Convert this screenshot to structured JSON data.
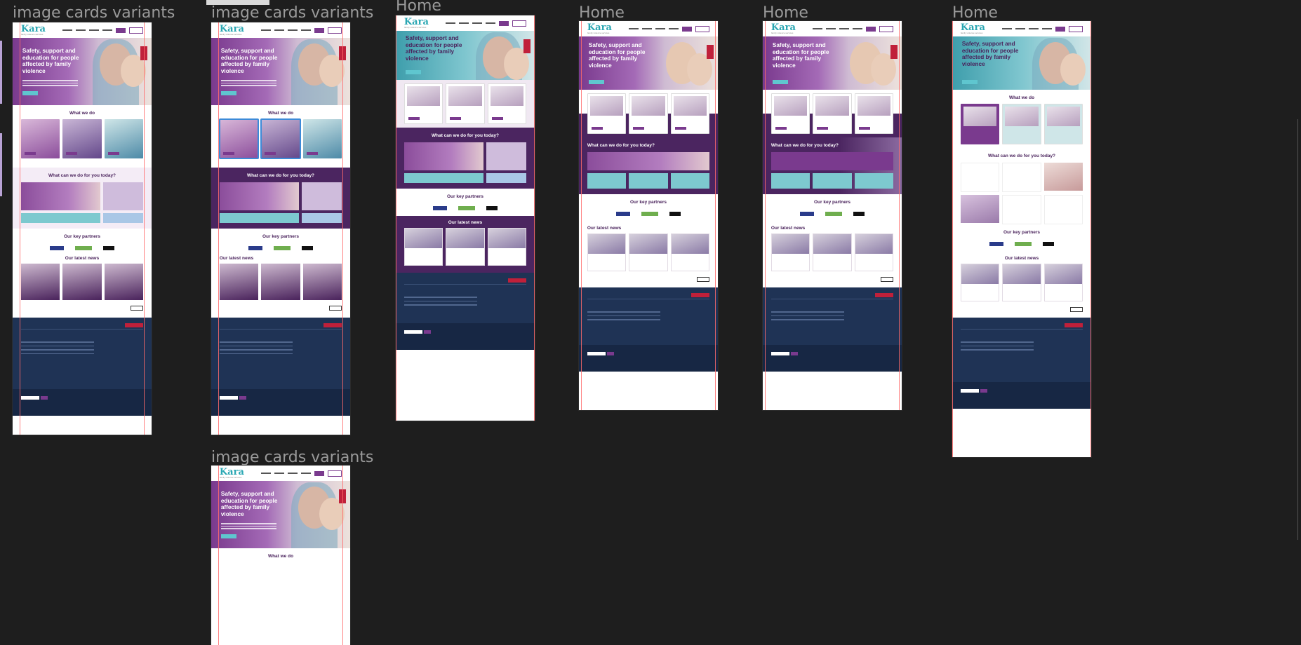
{
  "canvas": {
    "frames": [
      {
        "label": "image cards variants"
      },
      {
        "label": "image cards variants"
      },
      {
        "label": "Home"
      },
      {
        "label": "Home"
      },
      {
        "label": "Home"
      },
      {
        "label": "Home"
      },
      {
        "label": "image cards variants"
      }
    ]
  },
  "site": {
    "logo": "Kara",
    "logo_sub": "family violence services",
    "hero_title": "Safety, support and education for people affected by family violence",
    "section_what": "What we do",
    "section_can": "What can we do for you today?",
    "section_partners": "Our key partners",
    "section_news": "Our latest news"
  }
}
